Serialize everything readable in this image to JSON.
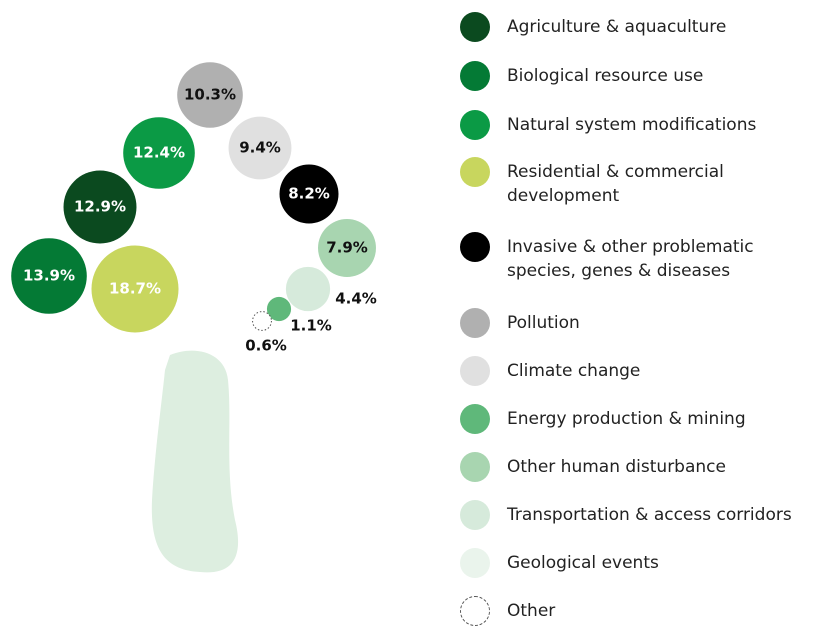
{
  "chart_data": {
    "type": "bubble",
    "categories": [
      "Agriculture & aquaculture",
      "Biological resource use",
      "Natural system modifications",
      "Residential & commercial development",
      "Invasive & other problematic species, genes & diseases",
      "Pollution",
      "Climate change",
      "Energy production & mining",
      "Other human disturbance",
      "Transportation & access corridors",
      "Geological events",
      "Other"
    ],
    "values": [
      12.9,
      13.9,
      12.4,
      18.7,
      8.2,
      10.3,
      9.4,
      1.1,
      7.9,
      4.4,
      null,
      0.6
    ],
    "value_labels": [
      "12.9%",
      "13.9%",
      "12.4%",
      "18.7%",
      "8.2%",
      "10.3%",
      "9.4%",
      "1.1%",
      "7.9%",
      "4.4%",
      null,
      "0.6%"
    ],
    "colors": [
      "#0b4a1f",
      "#047a35",
      "#0b9a45",
      "#c8d65e",
      "#000000",
      "#b0b0b0",
      "#e0e0e0",
      "#5fb87a",
      "#a8d5b0",
      "#d6eadb",
      "#eaf4ec",
      "#ffffff"
    ]
  }
}
